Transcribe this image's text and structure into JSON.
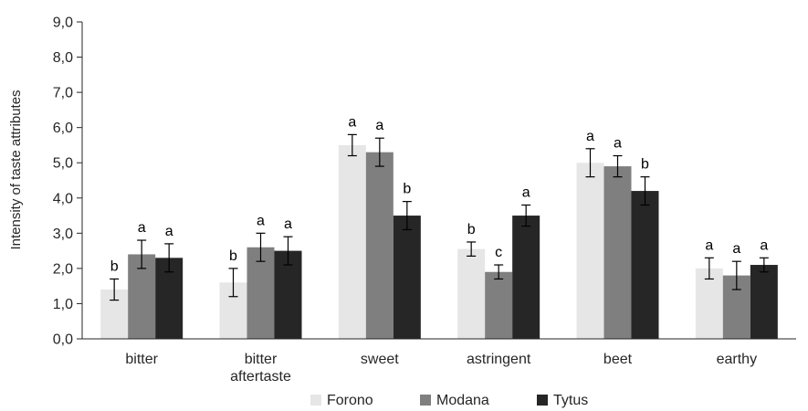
{
  "chart_data": {
    "type": "bar",
    "title": "",
    "xlabel": "",
    "ylabel": "Intensity of taste attributes",
    "ylim": [
      0,
      9
    ],
    "ytick_step": 1,
    "ytick_labels": [
      "0,0",
      "1,0",
      "2,0",
      "3,0",
      "4,0",
      "5,0",
      "6,0",
      "7,0",
      "8,0",
      "9,0"
    ],
    "grid": false,
    "legend_position": "bottom",
    "categories": [
      [
        "bitter"
      ],
      [
        "bitter",
        "aftertaste"
      ],
      [
        "sweet"
      ],
      [
        "astringent"
      ],
      [
        "beet"
      ],
      [
        "earthy"
      ]
    ],
    "series": [
      {
        "name": "Forono",
        "color": "#e7e6e6",
        "values": [
          1.4,
          1.6,
          5.5,
          2.55,
          5.0,
          2.0
        ],
        "errors": [
          0.3,
          0.4,
          0.3,
          0.2,
          0.4,
          0.3
        ],
        "letters": [
          "b",
          "b",
          "a",
          "b",
          "a",
          "a"
        ]
      },
      {
        "name": "Modana",
        "color": "#7f7f7f",
        "values": [
          2.4,
          2.6,
          5.3,
          1.9,
          4.9,
          1.8
        ],
        "errors": [
          0.4,
          0.4,
          0.4,
          0.2,
          0.3,
          0.4
        ],
        "letters": [
          "a",
          "a",
          "a",
          "c",
          "a",
          "a"
        ]
      },
      {
        "name": "Tytus",
        "color": "#262626",
        "values": [
          2.3,
          2.5,
          3.5,
          3.5,
          4.2,
          2.1
        ],
        "errors": [
          0.4,
          0.4,
          0.4,
          0.3,
          0.4,
          0.2
        ],
        "letters": [
          "a",
          "a",
          "b",
          "a",
          "b",
          "a"
        ]
      }
    ]
  }
}
